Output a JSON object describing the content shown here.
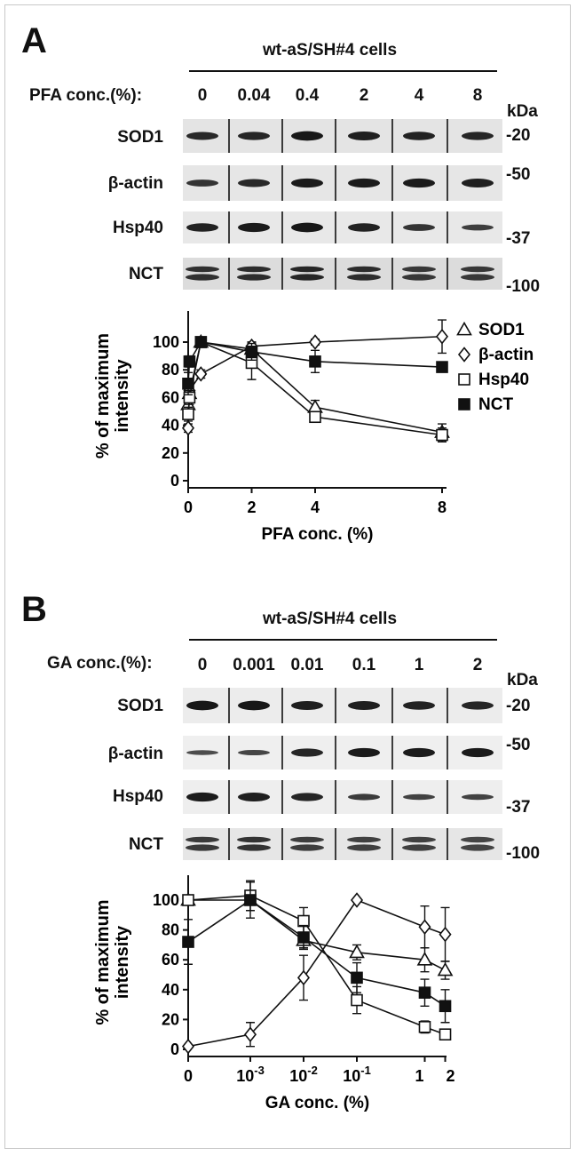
{
  "panels": [
    {
      "letter": "A",
      "cell_line": "wt-aS/SH#4 cells",
      "conc_label": "PFA conc.(%):",
      "lanes": [
        "0",
        "0.04",
        "0.4",
        "2",
        "4",
        "8"
      ],
      "kda_label": "kDa",
      "blots": [
        {
          "protein": "SOD1",
          "marker": "-20",
          "strip_color": "#e4e4e4",
          "intensity": [
            0.7,
            0.75,
            0.95,
            0.85,
            0.8,
            0.75
          ]
        },
        {
          "protein": "β-actin",
          "marker": "-50",
          "strip_color": "#e6e6e6",
          "intensity": [
            0.55,
            0.7,
            0.9,
            0.9,
            0.9,
            0.85
          ]
        },
        {
          "protein": "Hsp40",
          "marker": "-37",
          "strip_color": "#e8e8e8",
          "intensity": [
            0.8,
            0.9,
            0.95,
            0.8,
            0.55,
            0.4
          ]
        },
        {
          "protein": "NCT",
          "marker": "-100",
          "strip_color": "#dcdcdc",
          "intensity": [
            0.75,
            0.8,
            0.9,
            0.8,
            0.65,
            0.65
          ],
          "double": true
        }
      ]
    },
    {
      "letter": "B",
      "cell_line": "wt-aS/SH#4 cells",
      "conc_label": "GA conc.(%):",
      "lanes": [
        "0",
        "0.001",
        "0.01",
        "0.1",
        "1",
        "2"
      ],
      "kda_label": "kDa",
      "blots": [
        {
          "protein": "SOD1",
          "marker": "-20",
          "strip_color": "#ececec",
          "intensity": [
            0.95,
            0.95,
            0.85,
            0.85,
            0.8,
            0.75
          ]
        },
        {
          "protein": "β-actin",
          "marker": "-50",
          "strip_color": "#efefef",
          "intensity": [
            0.2,
            0.3,
            0.75,
            0.9,
            0.9,
            0.9
          ]
        },
        {
          "protein": "Hsp40",
          "marker": "-37",
          "strip_color": "#eeeeee",
          "intensity": [
            0.9,
            0.85,
            0.75,
            0.45,
            0.35,
            0.35
          ]
        },
        {
          "protein": "NCT",
          "marker": "-100",
          "strip_color": "#e6e6e6",
          "intensity": [
            0.6,
            0.7,
            0.55,
            0.5,
            0.5,
            0.45
          ],
          "double": true
        }
      ]
    }
  ],
  "chart_data": [
    {
      "type": "line",
      "xlabel": "PFA conc. (%)",
      "ylabel": "% of maximum intensity",
      "x_ticks": [
        "0",
        "2",
        "4",
        "8"
      ],
      "y_ticks": [
        "0",
        "20",
        "40",
        "60",
        "80",
        "100"
      ],
      "xlim": [
        0,
        8
      ],
      "ylim": [
        0,
        100
      ],
      "legend_placement": "top-right",
      "series": [
        {
          "name": "SOD1",
          "marker": "triangle-open",
          "x": [
            0,
            0.04,
            0.4,
            2,
            4,
            8
          ],
          "y": [
            55,
            63,
            100,
            95,
            53,
            35
          ],
          "err": [
            6,
            5,
            0,
            5,
            5,
            6
          ]
        },
        {
          "name": "β-actin",
          "marker": "diamond-open",
          "x": [
            0,
            0.04,
            0.4,
            2,
            4,
            8
          ],
          "y": [
            38,
            65,
            77,
            97,
            100,
            104
          ],
          "err": [
            3,
            4,
            3,
            3,
            2,
            12
          ]
        },
        {
          "name": "Hsp40",
          "marker": "square-open",
          "x": [
            0,
            0.04,
            0.4,
            2,
            4,
            8
          ],
          "y": [
            48,
            60,
            100,
            85,
            46,
            33
          ],
          "err": [
            5,
            5,
            0,
            12,
            3,
            5
          ]
        },
        {
          "name": "NCT",
          "marker": "square-filled",
          "x": [
            0,
            0.04,
            0.4,
            2,
            4,
            8
          ],
          "y": [
            70,
            86,
            100,
            93,
            86,
            82
          ],
          "err": [
            8,
            4,
            0,
            6,
            8,
            2
          ]
        }
      ]
    },
    {
      "type": "line",
      "xlabel": "GA conc. (%)",
      "ylabel": "% of maximum intensity",
      "x_scale": "log",
      "x_ticks": [
        {
          "value": 0,
          "base": "0",
          "exp": ""
        },
        {
          "value": 0.001,
          "base": "10",
          "exp": "-3"
        },
        {
          "value": 0.01,
          "base": "10",
          "exp": "-2"
        },
        {
          "value": 0.1,
          "base": "10",
          "exp": "-1"
        },
        {
          "value": 1,
          "base": "1",
          "exp": ""
        },
        {
          "value": 2,
          "base": "2",
          "exp": ""
        }
      ],
      "y_ticks": [
        "0",
        "20",
        "40",
        "60",
        "80",
        "100"
      ],
      "ylim": [
        0,
        100
      ],
      "series": [
        {
          "name": "SOD1",
          "marker": "triangle-open",
          "x": [
            0,
            0.001,
            0.01,
            0.1,
            1,
            2
          ],
          "y": [
            100,
            100,
            73,
            65,
            60,
            53
          ],
          "err": [
            2,
            3,
            5,
            5,
            8,
            6
          ]
        },
        {
          "name": "β-actin",
          "marker": "diamond-open",
          "x": [
            0,
            0.001,
            0.01,
            0.1,
            1,
            2
          ],
          "y": [
            2,
            10,
            48,
            100,
            82,
            77
          ],
          "err": [
            1,
            8,
            15,
            0,
            14,
            18
          ]
        },
        {
          "name": "Hsp40",
          "marker": "square-open",
          "x": [
            0,
            0.001,
            0.01,
            0.1,
            1,
            2
          ],
          "y": [
            100,
            103,
            86,
            33,
            15,
            10
          ],
          "err": [
            1,
            10,
            9,
            9,
            4,
            3
          ]
        },
        {
          "name": "NCT",
          "marker": "square-filled",
          "x": [
            0,
            0.001,
            0.01,
            0.1,
            1,
            2
          ],
          "y": [
            72,
            100,
            75,
            48,
            38,
            29
          ],
          "err": [
            15,
            12,
            8,
            10,
            9,
            11
          ]
        }
      ]
    }
  ]
}
